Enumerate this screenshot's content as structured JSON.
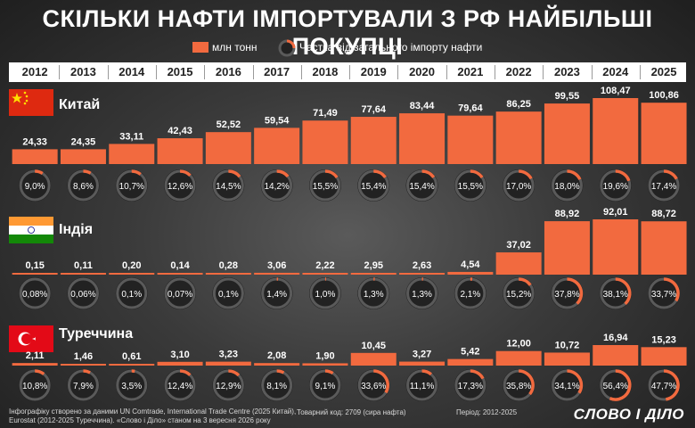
{
  "title": "СКІЛЬКИ НАФТИ ІМПОРТУВАЛИ З РФ НАЙБІЛЬШІ ПОКУПЦІ",
  "legend": {
    "bar_label": "млн тонн",
    "share_label": "Частка від загального імпорту нафти"
  },
  "colors": {
    "bar": "#f26a3f",
    "ring_track": "#5a5a5a",
    "ring_fill": "#f26a3f",
    "circle": "#222222",
    "text": "#ffffff"
  },
  "chart_data": {
    "type": "bar",
    "categories": [
      "2012",
      "2013",
      "2014",
      "2015",
      "2016",
      "2017",
      "2018",
      "2019",
      "2020",
      "2021",
      "2022",
      "2023",
      "2024",
      "2025"
    ],
    "ylabel": "млн тонн",
    "series": [
      {
        "name": "Китай",
        "values": [
          24.33,
          24.35,
          33.11,
          42.43,
          52.52,
          59.54,
          71.49,
          77.64,
          83.44,
          79.64,
          86.25,
          99.55,
          108.47,
          100.86
        ],
        "value_labels": [
          "24,33",
          "24,35",
          "33,11",
          "42,43",
          "52,52",
          "59,54",
          "71,49",
          "77,64",
          "83,44",
          "79,64",
          "86,25",
          "99,55",
          "108,47",
          "100,86"
        ],
        "share": [
          9.0,
          8.6,
          10.7,
          12.6,
          14.5,
          14.2,
          15.5,
          15.4,
          15.4,
          15.5,
          17.0,
          18.0,
          19.6,
          17.4
        ],
        "share_labels": [
          "9,0%",
          "8,6%",
          "10,7%",
          "12,6%",
          "14,5%",
          "14,2%",
          "15,5%",
          "15,4%",
          "15,4%",
          "15,5%",
          "17,0%",
          "18,0%",
          "19,6%",
          "17,4%"
        ]
      },
      {
        "name": "Індія",
        "values": [
          0.15,
          0.11,
          0.2,
          0.14,
          0.28,
          3.06,
          2.22,
          2.95,
          2.63,
          4.54,
          37.02,
          88.92,
          92.01,
          88.72
        ],
        "value_labels": [
          "0,15",
          "0,11",
          "0,20",
          "0,14",
          "0,28",
          "3,06",
          "2,22",
          "2,95",
          "2,63",
          "4,54",
          "37,02",
          "88,92",
          "92,01",
          "88,72"
        ],
        "share": [
          0.08,
          0.06,
          0.1,
          0.07,
          0.1,
          1.4,
          1.0,
          1.3,
          1.3,
          2.1,
          15.2,
          37.8,
          38.1,
          33.7
        ],
        "share_labels": [
          "0,08%",
          "0,06%",
          "0,1%",
          "0,07%",
          "0,1%",
          "1,4%",
          "1,0%",
          "1,3%",
          "1,3%",
          "2,1%",
          "15,2%",
          "37,8%",
          "38,1%",
          "33,7%"
        ]
      },
      {
        "name": "Туреччина",
        "values": [
          2.11,
          1.46,
          0.61,
          3.1,
          3.23,
          2.08,
          1.9,
          10.45,
          3.27,
          5.42,
          12.0,
          10.72,
          16.94,
          15.23
        ],
        "value_labels": [
          "2,11",
          "1,46",
          "0,61",
          "3,10",
          "3,23",
          "2,08",
          "1,90",
          "10,45",
          "3,27",
          "5,42",
          "12,00",
          "10,72",
          "16,94",
          "15,23"
        ],
        "share": [
          10.8,
          7.9,
          3.5,
          12.4,
          12.9,
          8.1,
          9.1,
          33.6,
          11.1,
          17.3,
          35.8,
          34.1,
          56.4,
          47.7
        ],
        "share_labels": [
          "10,8%",
          "7,9%",
          "3,5%",
          "12,4%",
          "12,9%",
          "8,1%",
          "9,1%",
          "33,6%",
          "11,1%",
          "17,3%",
          "35,8%",
          "34,1%",
          "56,4%",
          "47,7%"
        ]
      }
    ]
  },
  "footer": {
    "source_line1": "Інфографіку створено за даними UN Comtrade, International Trade Centre (2025 Китай),",
    "source_line2": "Eurostat (2012-2025 Туреччина). «Слово і Діло» станом на 3 вересня 2026 року",
    "code": "Товарний код: 2709 (сира нафта)",
    "period": "Період: 2012-2025",
    "logo": "СЛОВО І ДІЛО"
  }
}
